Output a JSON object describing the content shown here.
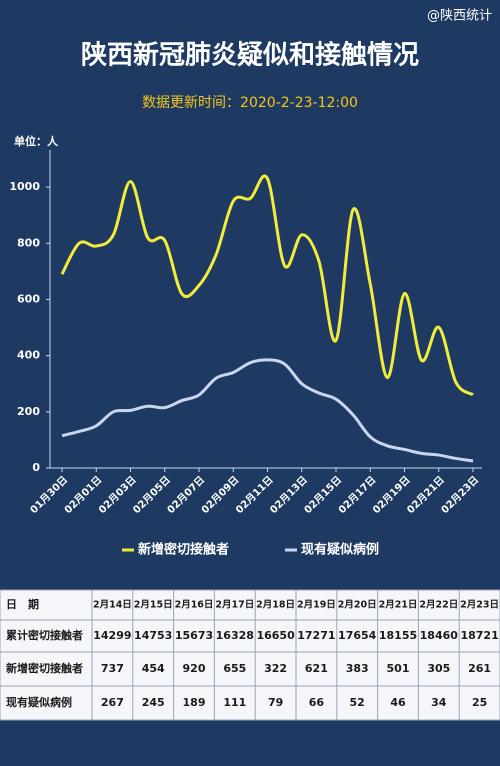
{
  "header": {
    "watermark": "@陕西统计",
    "title": "陕西新冠肺炎疑似和接触情况",
    "subtitle": "数据更新时间：2020-2-23-12:00",
    "unit": "单位：人"
  },
  "chart_data": {
    "type": "line",
    "categories": [
      "01月30日",
      null,
      "02月01日",
      null,
      "02月03日",
      null,
      "02月05日",
      null,
      "02月07日",
      null,
      "02月09日",
      null,
      "02月11日",
      null,
      "02月13日",
      null,
      "02月15日",
      null,
      "02月17日",
      null,
      "02月19日",
      null,
      "02月21日",
      null,
      "02月23日"
    ],
    "series": [
      {
        "name": "新增密切接触者",
        "color": "#f2ec3a",
        "values": [
          690,
          800,
          790,
          830,
          1020,
          820,
          810,
          620,
          650,
          760,
          950,
          960,
          1030,
          720,
          830,
          737,
          454,
          920,
          655,
          322,
          621,
          383,
          501,
          305,
          261
        ]
      },
      {
        "name": "现有疑似病例",
        "color": "#c9d6ee",
        "values": [
          115,
          130,
          150,
          200,
          205,
          220,
          215,
          240,
          260,
          320,
          340,
          375,
          385,
          370,
          300,
          267,
          245,
          189,
          111,
          79,
          66,
          52,
          46,
          34,
          25
        ]
      }
    ],
    "ylim": [
      0,
      1100
    ],
    "yticks": [
      0,
      200,
      400,
      600,
      800,
      1000
    ],
    "grid": false,
    "legend": "bottom"
  },
  "table": {
    "header": [
      "日　期",
      "2月14日",
      "2月15日",
      "2月16日",
      "2月17日",
      "2月18日",
      "2月19日",
      "2月20日",
      "2月21日",
      "2月22日",
      "2月23日"
    ],
    "rows": [
      [
        "累计密切接触者",
        14299,
        14753,
        15673,
        16328,
        16650,
        17271,
        17654,
        18155,
        18460,
        18721
      ],
      [
        "新增密切接触者",
        737,
        454,
        920,
        655,
        322,
        621,
        383,
        501,
        305,
        261
      ],
      [
        "现有疑似病例",
        267,
        245,
        189,
        111,
        79,
        66,
        52,
        46,
        34,
        25
      ]
    ]
  }
}
